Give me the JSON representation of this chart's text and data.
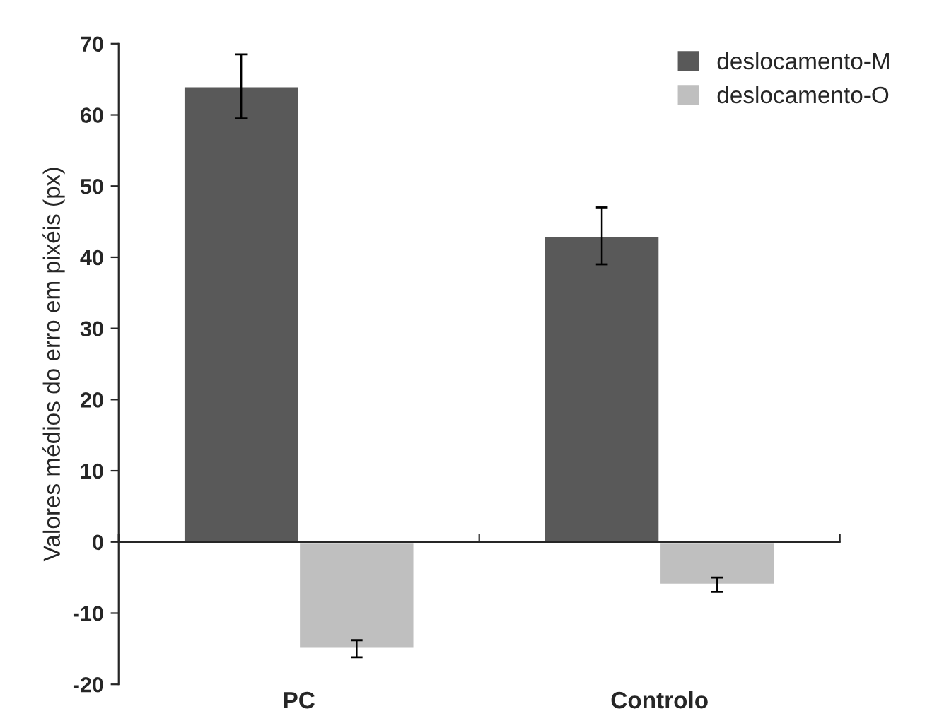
{
  "chart_data": {
    "type": "bar",
    "ylabel": "Valores médios do erro em pixéis (px)",
    "categories": [
      "PC",
      "Controlo"
    ],
    "series": [
      {
        "name": "deslocamento-M",
        "color": "#595959",
        "values": [
          64,
          43
        ],
        "errors": [
          4.5,
          4
        ]
      },
      {
        "name": "deslocamento-O",
        "color": "#bfbfbf",
        "values": [
          -15,
          -6
        ],
        "errors": [
          1.2,
          1
        ]
      }
    ],
    "ylim": [
      -20,
      70
    ],
    "yticks": [
      -20,
      -10,
      0,
      10,
      20,
      30,
      40,
      50,
      60,
      70
    ],
    "legend": "top right"
  }
}
